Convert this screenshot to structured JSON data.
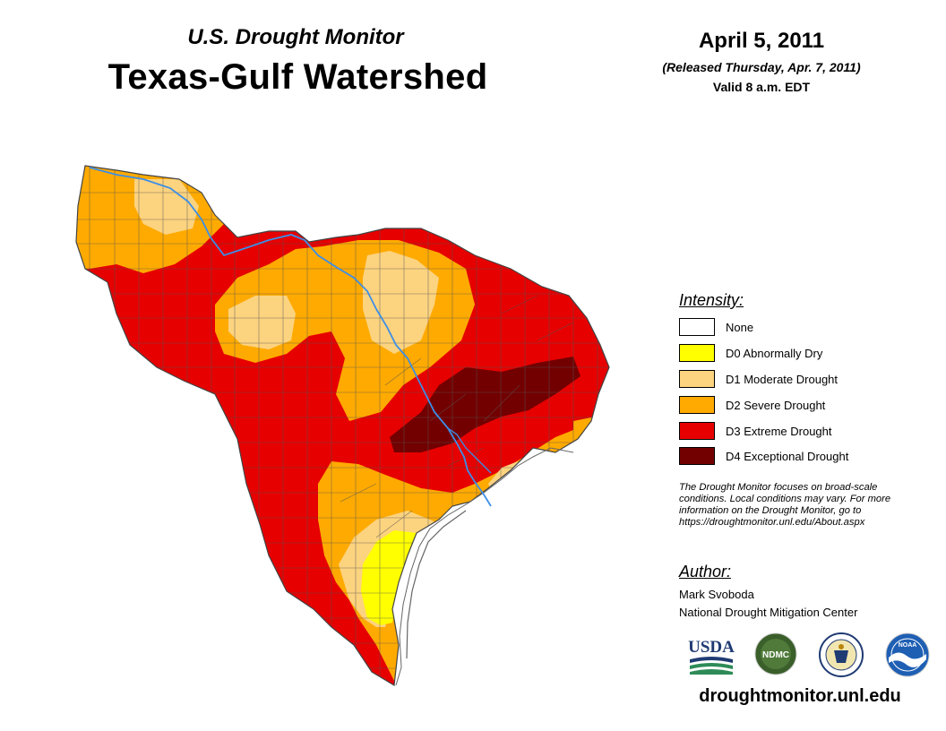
{
  "header": {
    "subtitle": "U.S. Drought Monitor",
    "title": "Texas-Gulf Watershed",
    "date": "April 5, 2011",
    "released": "(Released Thursday, Apr. 7, 2011)",
    "valid": "Valid 8 a.m. EDT"
  },
  "legend": {
    "heading": "Intensity:",
    "items": [
      {
        "label": "None",
        "color": "#ffffff"
      },
      {
        "label": "D0 Abnormally Dry",
        "color": "#ffff00"
      },
      {
        "label": "D1 Moderate Drought",
        "color": "#fcd37f"
      },
      {
        "label": "D2 Severe Drought",
        "color": "#ffaa00"
      },
      {
        "label": "D3 Extreme Drought",
        "color": "#e60000"
      },
      {
        "label": "D4 Exceptional Drought",
        "color": "#730000"
      }
    ]
  },
  "note": {
    "line1": "The Drought Monitor focuses on broad-scale",
    "line2": "conditions. Local conditions may vary. For more",
    "line3": "information on the Drought Monitor, go to",
    "line4": "https://droughtmonitor.unl.edu/About.aspx"
  },
  "author": {
    "heading": "Author:",
    "name": "Mark Svoboda",
    "org": "National Drought Mitigation Center"
  },
  "logos": {
    "usda": "USDA",
    "ndmc": "NDMC",
    "noaa": "NOAA"
  },
  "footer": {
    "url": "droughtmonitor.unl.edu"
  },
  "colors": {
    "river": "#3b8ee8",
    "county_lines": "#555555",
    "coast": "#666666"
  }
}
